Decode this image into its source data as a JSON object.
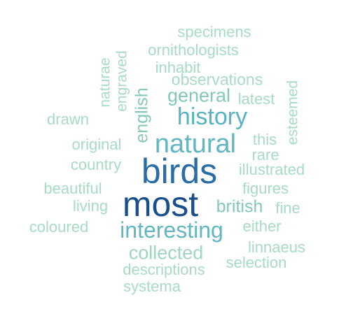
{
  "words": {
    "specimens": "specimens",
    "ornithologists": "ornithologists",
    "naturae": "naturae",
    "engraved": "engraved",
    "inhabit": "inhabit",
    "observations": "observations",
    "esteemed": "esteemed",
    "english": "english",
    "general": "general",
    "latest": "latest",
    "drawn": "drawn",
    "history": "history",
    "original": "original",
    "natural": "natural",
    "this": "this",
    "rare": "rare",
    "country": "country",
    "birds": "birds",
    "illustrated": "illustrated",
    "beautiful": "beautiful",
    "figures": "figures",
    "living": "living",
    "most": "most",
    "british": "british",
    "fine": "fine",
    "coloured": "coloured",
    "interesting": "interesting",
    "either": "either",
    "collected": "collected",
    "linnaeus": "linnaeus",
    "selection": "selection",
    "descriptions": "descriptions",
    "systema": "systema"
  },
  "colors": {
    "lightest": "#a7dcc2",
    "light": "#9fd6bd",
    "mid": "#84c8b8",
    "teal": "#56b3c2",
    "blue": "#2a6da6",
    "navy": "#1a4f8e",
    "background": "#ffffff"
  }
}
